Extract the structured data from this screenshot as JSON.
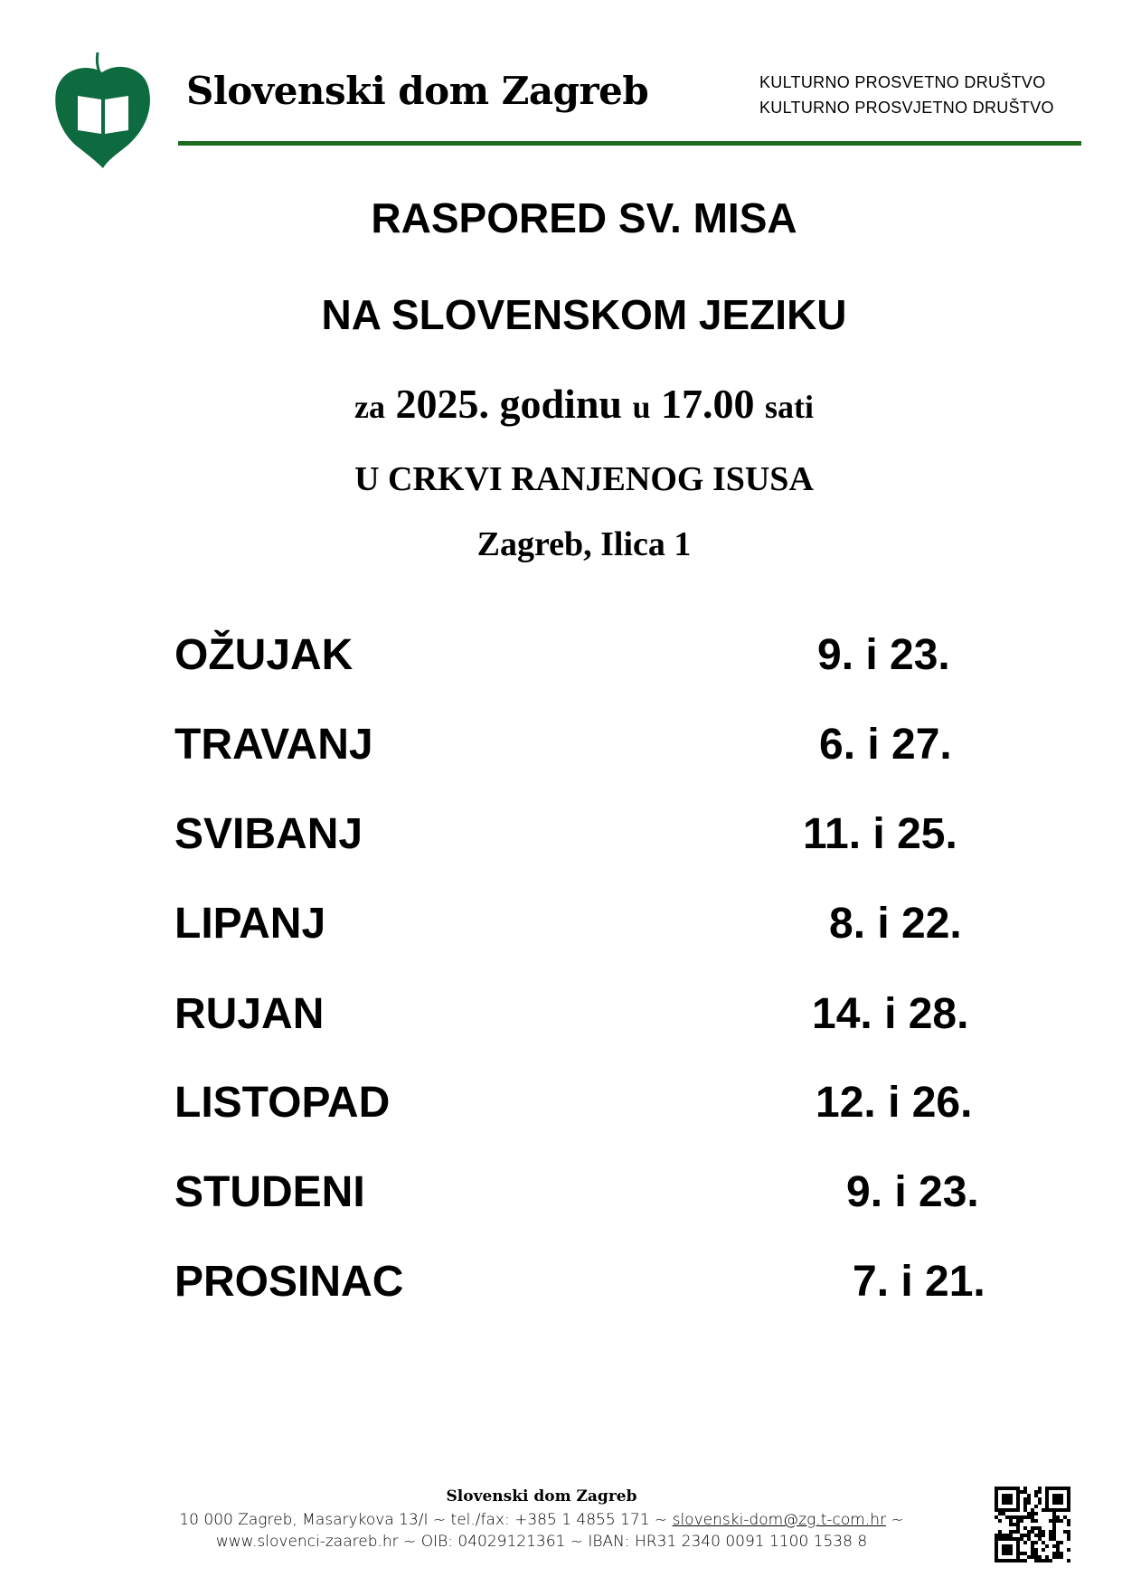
{
  "header": {
    "brand": "Slovenski dom Zagreb",
    "tagline_sl": "KULTURNO  PROSVETNO  DRUŠTVO",
    "tagline_hr": "KULTURNO PROSVJETNO DRUŠTVO",
    "accent": "#1e6b1e",
    "logo_color": "#0d6b3f"
  },
  "title": {
    "line1": "RASPORED SV. MISA",
    "line2": "NA SLOVENSKOM JEZIKU",
    "za": "za",
    "year": "2025. godinu",
    "u": "u",
    "time": "17.00",
    "sati": "sati",
    "church": "U CRKVI RANJENOG ISUSA",
    "address": "Zagreb, Ilica 1"
  },
  "schedule": [
    {
      "month": "OŽUJAK",
      "dates": "9. i 23."
    },
    {
      "month": "TRAVANJ",
      "dates": "6. i 27."
    },
    {
      "month": "SVIBANJ",
      "dates": "11. i 25."
    },
    {
      "month": "LIPANJ",
      "dates": "8. i 22."
    },
    {
      "month": "RUJAN",
      "dates": "14. i 28."
    },
    {
      "month": "LISTOPAD",
      "dates": "12. i 26."
    },
    {
      "month": "STUDENI",
      "dates": "9. i 23."
    },
    {
      "month": "PROSINAC",
      "dates": "7. i 21."
    }
  ],
  "footer": {
    "name": "Slovenski dom Zagreb",
    "line1_a": "10 000 Zagreb, Masarykova 13/I ~ tel./fax: +385 1 4855 171 ~ ",
    "email": "slovenski-dom@zg.t-com.hr",
    "line1_b": " ~",
    "line2": "www.slovenci-zaareb.hr ~ OIB: 04029121361 ~ IBAN: HR31 2340 0091 1100 1538 8"
  }
}
